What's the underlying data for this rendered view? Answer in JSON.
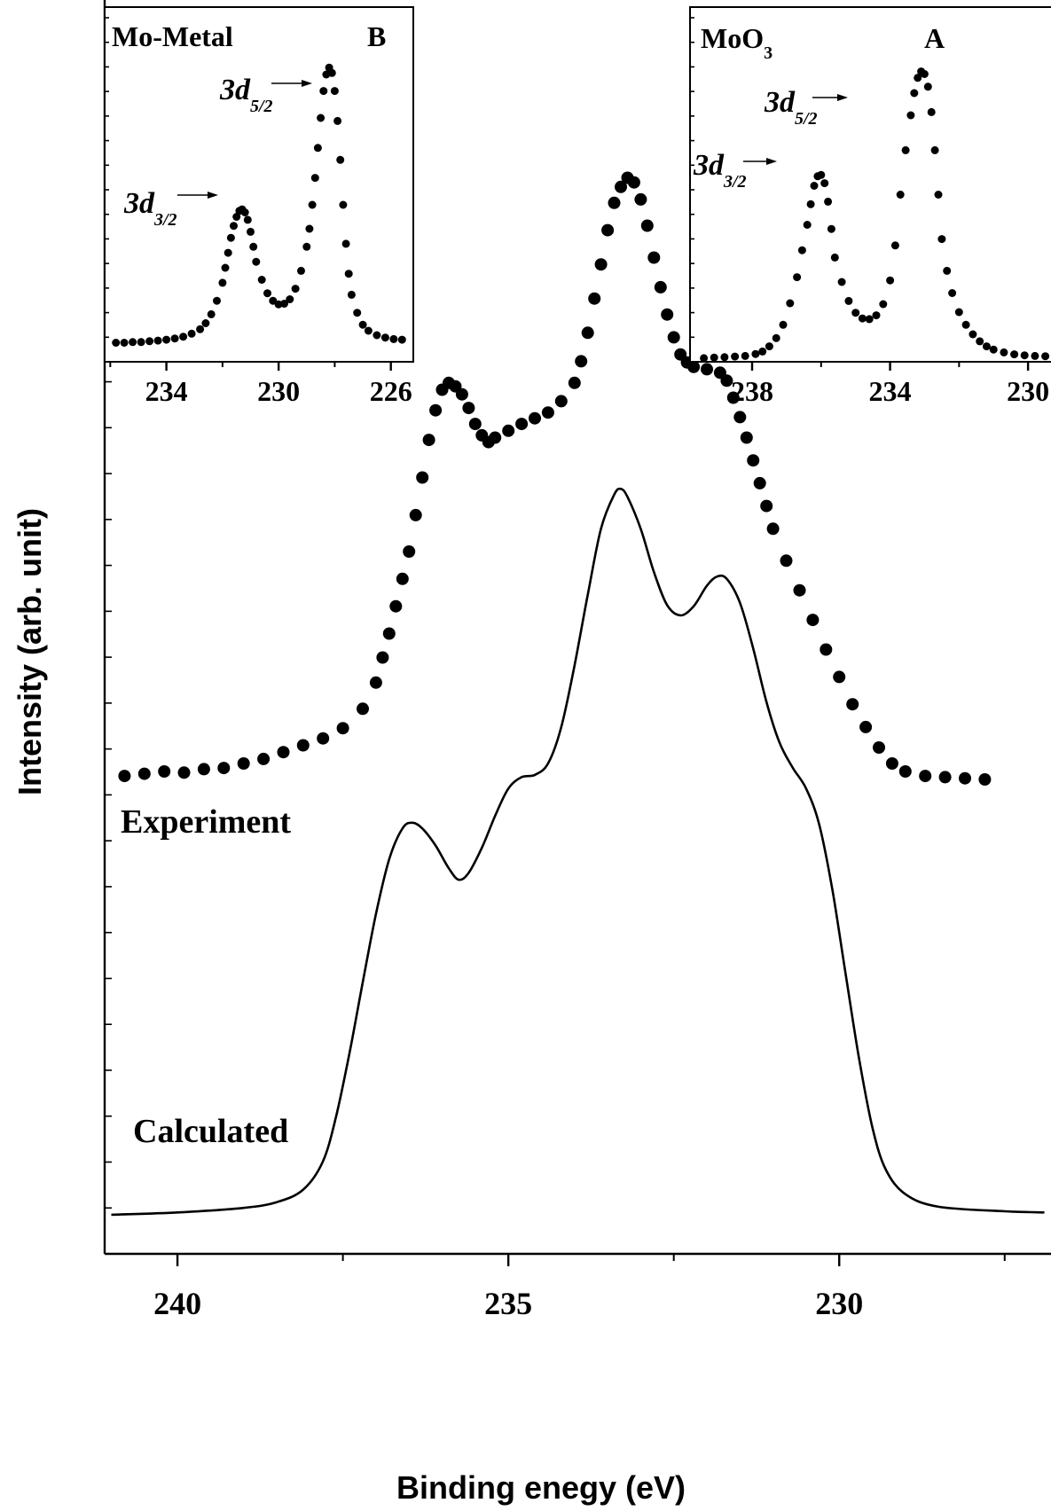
{
  "chart_data": [
    {
      "id": "main",
      "type": "scatter",
      "xlabel": "Binding enegy (eV)",
      "ylabel": "Intensity (arb. unit)",
      "xlim": [
        241.1,
        226.8
      ],
      "x_reversed": true,
      "ylim": [
        0,
        1.0
      ],
      "xticks": [
        240,
        235,
        230
      ],
      "xtick_labels": [
        "240",
        "235",
        "230"
      ],
      "grid": false,
      "annotations": [
        {
          "text": "Experiment",
          "x": 238.3,
          "y": 0.56
        },
        {
          "text": "Calculated",
          "x": 238.3,
          "y": 0.1
        }
      ],
      "series": [
        {
          "style": "markers",
          "points": [
            [
              240.8,
              0.403
            ],
            [
              240.5,
              0.405
            ],
            [
              240.2,
              0.407
            ],
            [
              239.9,
              0.406
            ],
            [
              239.6,
              0.409
            ],
            [
              239.3,
              0.41
            ],
            [
              239.0,
              0.414
            ],
            [
              238.7,
              0.418
            ],
            [
              238.4,
              0.424
            ],
            [
              238.1,
              0.43
            ],
            [
              237.8,
              0.436
            ],
            [
              237.5,
              0.445
            ],
            [
              237.2,
              0.462
            ],
            [
              237.0,
              0.485
            ],
            [
              236.9,
              0.507
            ],
            [
              236.8,
              0.528
            ],
            [
              236.7,
              0.552
            ],
            [
              236.6,
              0.576
            ],
            [
              236.5,
              0.6
            ],
            [
              236.4,
              0.632
            ],
            [
              236.3,
              0.665
            ],
            [
              236.2,
              0.698
            ],
            [
              236.1,
              0.724
            ],
            [
              236.0,
              0.742
            ],
            [
              235.9,
              0.748
            ],
            [
              235.8,
              0.745
            ],
            [
              235.7,
              0.738
            ],
            [
              235.6,
              0.726
            ],
            [
              235.5,
              0.712
            ],
            [
              235.4,
              0.702
            ],
            [
              235.3,
              0.696
            ],
            [
              235.2,
              0.7
            ],
            [
              235.0,
              0.706
            ],
            [
              234.8,
              0.712
            ],
            [
              234.6,
              0.717
            ],
            [
              234.4,
              0.722
            ],
            [
              234.2,
              0.732
            ],
            [
              234.0,
              0.748
            ],
            [
              233.9,
              0.767
            ],
            [
              233.8,
              0.792
            ],
            [
              233.7,
              0.822
            ],
            [
              233.6,
              0.852
            ],
            [
              233.5,
              0.882
            ],
            [
              233.4,
              0.906
            ],
            [
              233.3,
              0.92
            ],
            [
              233.2,
              0.928
            ],
            [
              233.1,
              0.924
            ],
            [
              233.0,
              0.909
            ],
            [
              232.9,
              0.886
            ],
            [
              232.8,
              0.858
            ],
            [
              232.7,
              0.832
            ],
            [
              232.6,
              0.808
            ],
            [
              232.5,
              0.788
            ],
            [
              232.4,
              0.773
            ],
            [
              232.3,
              0.766
            ],
            [
              232.2,
              0.762
            ],
            [
              232.0,
              0.76
            ],
            [
              231.8,
              0.757
            ],
            [
              231.7,
              0.75
            ],
            [
              231.6,
              0.735
            ],
            [
              231.5,
              0.718
            ],
            [
              231.4,
              0.7
            ],
            [
              231.3,
              0.68
            ],
            [
              231.2,
              0.66
            ],
            [
              231.1,
              0.64
            ],
            [
              231.0,
              0.62
            ],
            [
              230.8,
              0.592
            ],
            [
              230.6,
              0.566
            ],
            [
              230.4,
              0.54
            ],
            [
              230.2,
              0.514
            ],
            [
              230.0,
              0.49
            ],
            [
              229.8,
              0.466
            ],
            [
              229.6,
              0.446
            ],
            [
              229.4,
              0.428
            ],
            [
              229.2,
              0.414
            ],
            [
              229.0,
              0.407
            ],
            [
              228.7,
              0.403
            ],
            [
              228.4,
              0.402
            ],
            [
              228.1,
              0.401
            ],
            [
              227.8,
              0.4
            ]
          ]
        },
        {
          "style": "line",
          "points": [
            [
              241.0,
              0.018
            ],
            [
              240.0,
              0.02
            ],
            [
              239.0,
              0.024
            ],
            [
              238.5,
              0.029
            ],
            [
              238.1,
              0.04
            ],
            [
              237.8,
              0.065
            ],
            [
              237.6,
              0.105
            ],
            [
              237.4,
              0.16
            ],
            [
              237.2,
              0.222
            ],
            [
              237.0,
              0.282
            ],
            [
              236.8,
              0.33
            ],
            [
              236.6,
              0.357
            ],
            [
              236.45,
              0.362
            ],
            [
              236.3,
              0.357
            ],
            [
              236.1,
              0.342
            ],
            [
              235.9,
              0.322
            ],
            [
              235.75,
              0.312
            ],
            [
              235.6,
              0.318
            ],
            [
              235.4,
              0.34
            ],
            [
              235.2,
              0.368
            ],
            [
              235.0,
              0.392
            ],
            [
              234.8,
              0.402
            ],
            [
              234.6,
              0.404
            ],
            [
              234.4,
              0.414
            ],
            [
              234.2,
              0.446
            ],
            [
              234.0,
              0.5
            ],
            [
              233.8,
              0.562
            ],
            [
              233.6,
              0.62
            ],
            [
              233.4,
              0.65
            ],
            [
              233.3,
              0.655
            ],
            [
              233.2,
              0.648
            ],
            [
              233.0,
              0.62
            ],
            [
              232.8,
              0.582
            ],
            [
              232.6,
              0.553
            ],
            [
              232.4,
              0.544
            ],
            [
              232.2,
              0.552
            ],
            [
              232.0,
              0.57
            ],
            [
              231.85,
              0.578
            ],
            [
              231.7,
              0.576
            ],
            [
              231.5,
              0.555
            ],
            [
              231.3,
              0.515
            ],
            [
              231.1,
              0.468
            ],
            [
              230.9,
              0.432
            ],
            [
              230.7,
              0.41
            ],
            [
              230.5,
              0.392
            ],
            [
              230.3,
              0.36
            ],
            [
              230.1,
              0.302
            ],
            [
              229.9,
              0.228
            ],
            [
              229.7,
              0.155
            ],
            [
              229.5,
              0.095
            ],
            [
              229.3,
              0.058
            ],
            [
              229.0,
              0.036
            ],
            [
              228.5,
              0.025
            ],
            [
              227.5,
              0.021
            ],
            [
              226.9,
              0.02
            ]
          ]
        }
      ]
    },
    {
      "id": "inset-b",
      "type": "scatter",
      "title": "Mo-Metal",
      "panel_label": "B",
      "xlim": [
        236.2,
        225.2
      ],
      "x_reversed": true,
      "ylim": [
        0,
        1.0
      ],
      "xticks": [
        234,
        230,
        226
      ],
      "xtick_labels": [
        "234",
        "230",
        "226"
      ],
      "annotations": [
        {
          "text": "3d",
          "subscript": "5/2",
          "target": "228.1 peak"
        },
        {
          "text": "3d",
          "subscript": "3/2",
          "target": "231.3 peak"
        }
      ],
      "series": [
        {
          "style": "markers",
          "points": [
            [
              235.8,
              0.04
            ],
            [
              235.5,
              0.04
            ],
            [
              235.2,
              0.042
            ],
            [
              234.9,
              0.042
            ],
            [
              234.6,
              0.045
            ],
            [
              234.3,
              0.047
            ],
            [
              234.0,
              0.05
            ],
            [
              233.7,
              0.054
            ],
            [
              233.4,
              0.06
            ],
            [
              233.1,
              0.07
            ],
            [
              232.8,
              0.085
            ],
            [
              232.6,
              0.105
            ],
            [
              232.4,
              0.135
            ],
            [
              232.2,
              0.18
            ],
            [
              232.0,
              0.24
            ],
            [
              231.9,
              0.29
            ],
            [
              231.8,
              0.34
            ],
            [
              231.7,
              0.39
            ],
            [
              231.6,
              0.43
            ],
            [
              231.5,
              0.46
            ],
            [
              231.4,
              0.48
            ],
            [
              231.3,
              0.485
            ],
            [
              231.2,
              0.475
            ],
            [
              231.1,
              0.45
            ],
            [
              231.0,
              0.41
            ],
            [
              230.9,
              0.36
            ],
            [
              230.8,
              0.31
            ],
            [
              230.6,
              0.25
            ],
            [
              230.4,
              0.205
            ],
            [
              230.2,
              0.18
            ],
            [
              230.0,
              0.168
            ],
            [
              229.8,
              0.17
            ],
            [
              229.6,
              0.185
            ],
            [
              229.4,
              0.22
            ],
            [
              229.2,
              0.28
            ],
            [
              229.0,
              0.36
            ],
            [
              228.9,
              0.42
            ],
            [
              228.8,
              0.5
            ],
            [
              228.7,
              0.59
            ],
            [
              228.6,
              0.69
            ],
            [
              228.5,
              0.79
            ],
            [
              228.4,
              0.88
            ],
            [
              228.3,
              0.935
            ],
            [
              228.2,
              0.958
            ],
            [
              228.1,
              0.94
            ],
            [
              228.0,
              0.88
            ],
            [
              227.9,
              0.78
            ],
            [
              227.8,
              0.65
            ],
            [
              227.7,
              0.5
            ],
            [
              227.6,
              0.37
            ],
            [
              227.5,
              0.27
            ],
            [
              227.4,
              0.2
            ],
            [
              227.2,
              0.14
            ],
            [
              227.0,
              0.1
            ],
            [
              226.8,
              0.08
            ],
            [
              226.5,
              0.065
            ],
            [
              226.2,
              0.057
            ],
            [
              225.9,
              0.052
            ],
            [
              225.6,
              0.05
            ]
          ]
        }
      ]
    },
    {
      "id": "inset-a",
      "type": "scatter",
      "title": "MoO",
      "title_subscript": "3",
      "panel_label": "A",
      "xlim": [
        239.8,
        229.0
      ],
      "x_reversed": true,
      "ylim": [
        0,
        1.0
      ],
      "xticks": [
        238,
        234,
        230
      ],
      "xtick_labels": [
        "238",
        "234",
        "230"
      ],
      "annotations": [
        {
          "text": "3d",
          "subscript": "5/2",
          "target": "232.9 peak"
        },
        {
          "text": "3d",
          "subscript": "3/2",
          "target": "236.0 peak"
        }
      ],
      "series": [
        {
          "style": "markers",
          "points": [
            [
              239.4,
              0.045
            ],
            [
              239.1,
              0.047
            ],
            [
              238.8,
              0.048
            ],
            [
              238.5,
              0.05
            ],
            [
              238.2,
              0.052
            ],
            [
              237.9,
              0.058
            ],
            [
              237.7,
              0.066
            ],
            [
              237.5,
              0.082
            ],
            [
              237.3,
              0.108
            ],
            [
              237.1,
              0.15
            ],
            [
              236.9,
              0.218
            ],
            [
              236.7,
              0.3
            ],
            [
              236.55,
              0.385
            ],
            [
              236.4,
              0.465
            ],
            [
              236.3,
              0.53
            ],
            [
              236.2,
              0.588
            ],
            [
              236.1,
              0.618
            ],
            [
              236.0,
              0.622
            ],
            [
              235.9,
              0.596
            ],
            [
              235.8,
              0.538
            ],
            [
              235.7,
              0.452
            ],
            [
              235.6,
              0.362
            ],
            [
              235.4,
              0.285
            ],
            [
              235.2,
              0.225
            ],
            [
              235.0,
              0.188
            ],
            [
              234.8,
              0.17
            ],
            [
              234.6,
              0.168
            ],
            [
              234.4,
              0.18
            ],
            [
              234.2,
              0.215
            ],
            [
              234.0,
              0.29
            ],
            [
              233.85,
              0.4
            ],
            [
              233.7,
              0.56
            ],
            [
              233.55,
              0.7
            ],
            [
              233.4,
              0.81
            ],
            [
              233.3,
              0.88
            ],
            [
              233.2,
              0.928
            ],
            [
              233.1,
              0.948
            ],
            [
              233.0,
              0.94
            ],
            [
              232.9,
              0.9
            ],
            [
              232.8,
              0.82
            ],
            [
              232.7,
              0.7
            ],
            [
              232.6,
              0.56
            ],
            [
              232.5,
              0.42
            ],
            [
              232.35,
              0.32
            ],
            [
              232.2,
              0.25
            ],
            [
              232.0,
              0.19
            ],
            [
              231.8,
              0.15
            ],
            [
              231.6,
              0.12
            ],
            [
              231.4,
              0.098
            ],
            [
              231.2,
              0.082
            ],
            [
              231.0,
              0.072
            ],
            [
              230.7,
              0.063
            ],
            [
              230.4,
              0.057
            ],
            [
              230.1,
              0.054
            ],
            [
              229.8,
              0.052
            ],
            [
              229.5,
              0.051
            ],
            [
              229.2,
              0.05
            ]
          ]
        }
      ]
    }
  ]
}
